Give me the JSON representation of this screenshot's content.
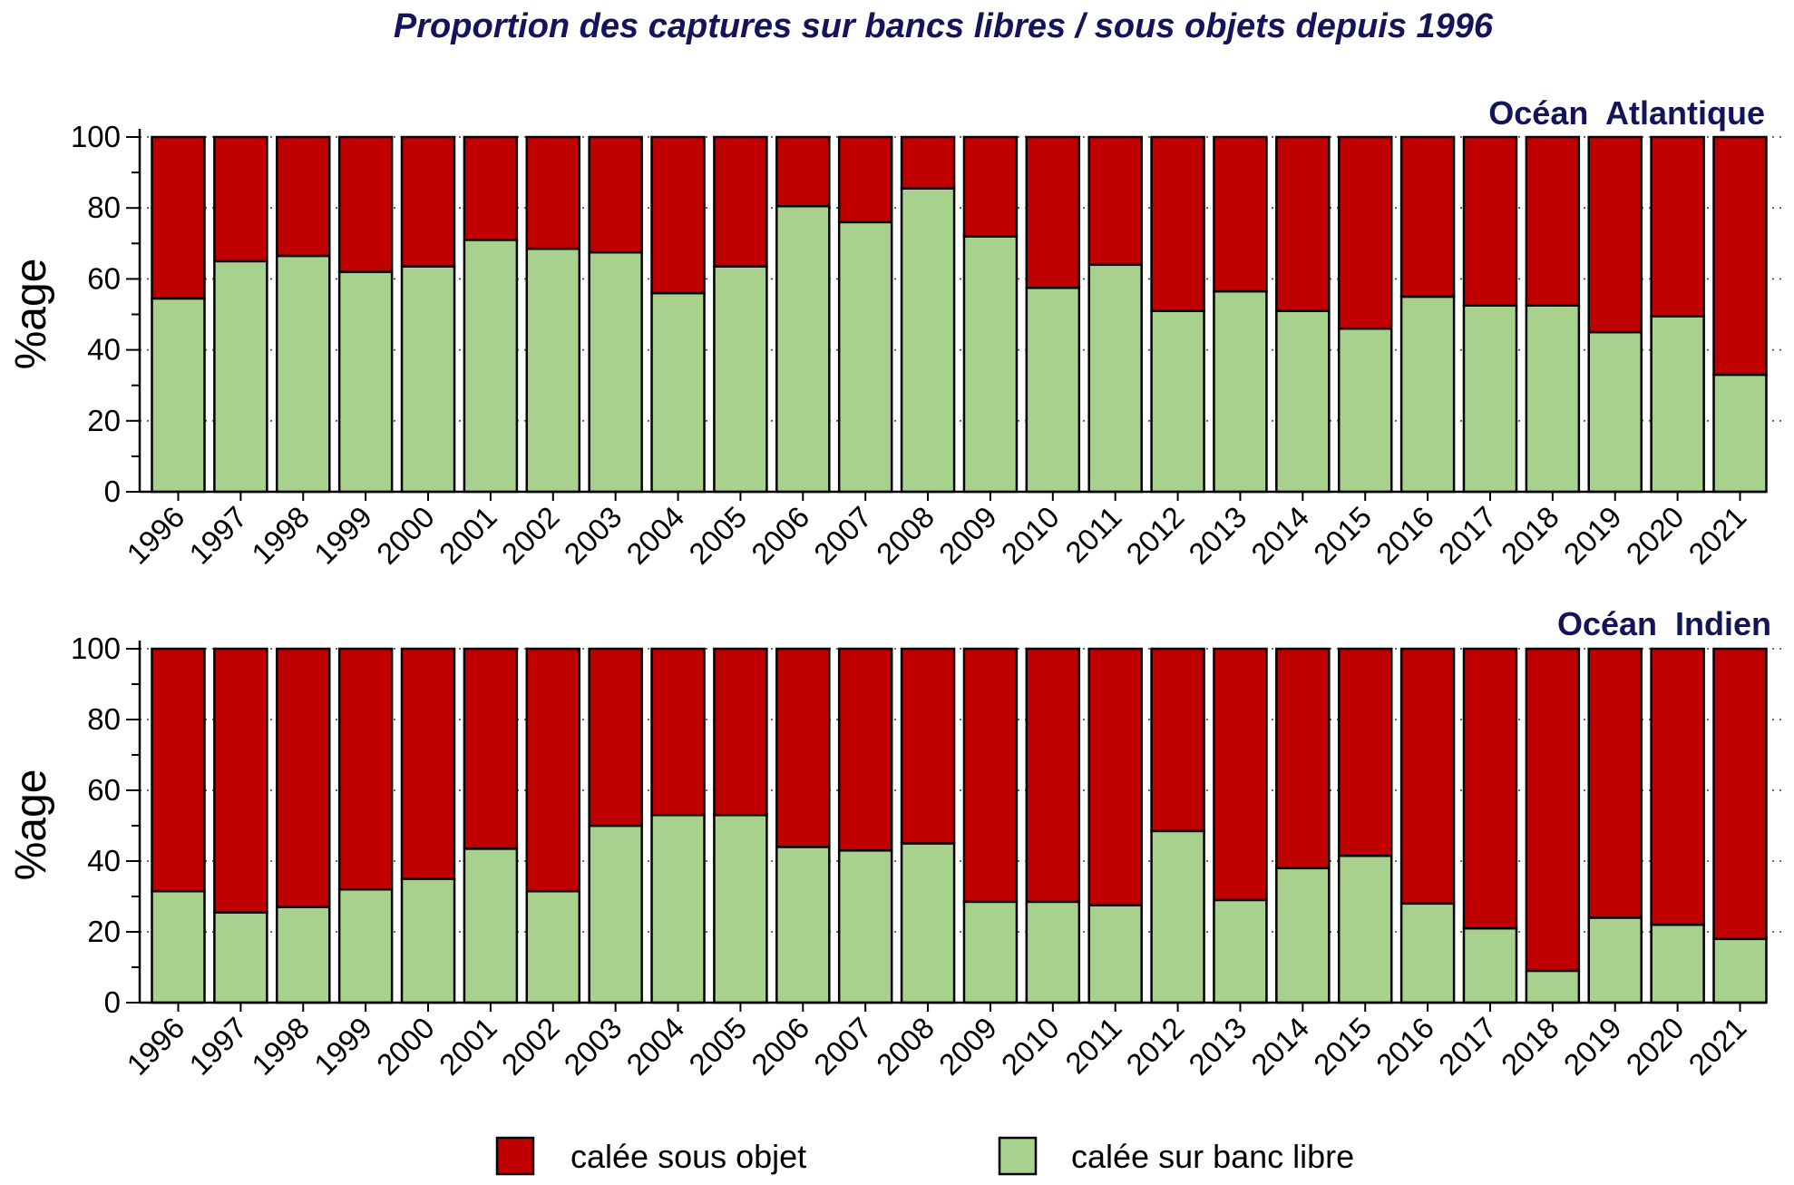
{
  "title": "Proportion des captures sur bancs libres / sous objets depuis 1996",
  "chart_data": [
    {
      "type": "bar",
      "stacked": true,
      "title": "Océan  Atlantique",
      "ylabel": "%age",
      "ylim": [
        0,
        100
      ],
      "yticks": [
        0,
        20,
        40,
        60,
        80,
        100
      ],
      "grid": true,
      "legend": "bottom",
      "categories": [
        "1996",
        "1997",
        "1998",
        "1999",
        "2000",
        "2001",
        "2002",
        "2003",
        "2004",
        "2005",
        "2006",
        "2007",
        "2008",
        "2009",
        "2010",
        "2011",
        "2012",
        "2013",
        "2014",
        "2015",
        "2016",
        "2017",
        "2018",
        "2019",
        "2020",
        "2021"
      ],
      "series": [
        {
          "name": "calée sur banc libre",
          "color": "#a9d18e",
          "values": [
            54.5,
            65,
            66.5,
            62,
            63.5,
            71,
            68.5,
            67.5,
            56,
            63.5,
            80.5,
            76,
            85.5,
            72,
            57.5,
            64,
            51,
            56.5,
            51,
            46,
            55,
            52.5,
            52.5,
            45,
            49.5,
            33
          ]
        },
        {
          "name": "calée sous objet",
          "color": "#c00000",
          "values": [
            45.5,
            35,
            33.5,
            38,
            36.5,
            29,
            31.5,
            32.5,
            44,
            36.5,
            19.5,
            24,
            14.5,
            28,
            42.5,
            36,
            49,
            43.5,
            49,
            54,
            45,
            47.5,
            47.5,
            55,
            50.5,
            67
          ]
        }
      ]
    },
    {
      "type": "bar",
      "stacked": true,
      "title": "Océan  Indien",
      "ylabel": "%age",
      "ylim": [
        0,
        100
      ],
      "yticks": [
        0,
        20,
        40,
        60,
        80,
        100
      ],
      "grid": true,
      "legend": "bottom",
      "categories": [
        "1996",
        "1997",
        "1998",
        "1999",
        "2000",
        "2001",
        "2002",
        "2003",
        "2004",
        "2005",
        "2006",
        "2007",
        "2008",
        "2009",
        "2010",
        "2011",
        "2012",
        "2013",
        "2014",
        "2015",
        "2016",
        "2017",
        "2018",
        "2019",
        "2020",
        "2021"
      ],
      "series": [
        {
          "name": "calée sur banc libre",
          "color": "#a9d18e",
          "values": [
            31.5,
            25.5,
            27,
            32,
            35,
            43.5,
            31.5,
            50,
            53,
            53,
            44,
            43,
            45,
            28.5,
            28.5,
            27.5,
            48.5,
            29,
            38,
            41.5,
            28,
            21,
            9,
            24,
            22,
            18
          ]
        },
        {
          "name": "calée sous objet",
          "color": "#c00000",
          "values": [
            68.5,
            74.5,
            73,
            68,
            65,
            56.5,
            68.5,
            50,
            47,
            47,
            56,
            57,
            55,
            71.5,
            71.5,
            72.5,
            51.5,
            71,
            62,
            58.5,
            72,
            79,
            91,
            76,
            78,
            82
          ]
        }
      ]
    }
  ]
}
